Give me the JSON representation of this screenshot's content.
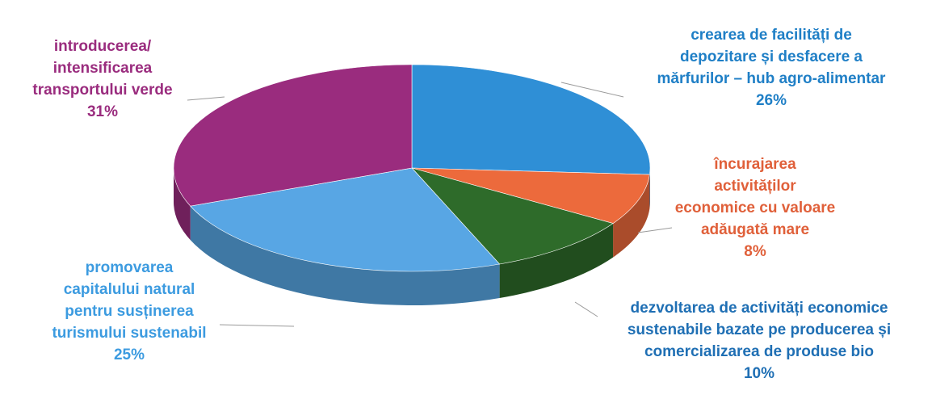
{
  "chart_data": {
    "type": "pie",
    "title": "",
    "slices": [
      {
        "lines": [
          "crearea de facilități de",
          "depozitare și desfacere a",
          "mărfurilor – hub agro-alimentar"
        ],
        "value": 26,
        "percent_label": "26%",
        "color": "#2f8fd6",
        "label_color": "#1f7fc6"
      },
      {
        "lines": [
          "încurajarea",
          "activităților",
          "economice cu valoare",
          "adăugată mare"
        ],
        "value": 8,
        "percent_label": "8%",
        "color": "#ec6a3c",
        "label_color": "#e0603a"
      },
      {
        "lines": [
          "dezvoltarea de activități economice",
          "sustenabile bazate pe producerea și",
          "comercializarea de produse bio"
        ],
        "value": 10,
        "percent_label": "10%",
        "color": "#2e6b2a",
        "label_color": "#1f6fb4"
      },
      {
        "lines": [
          "promovarea",
          "capitalului natural",
          "pentru susținerea",
          "turismului sustenabil"
        ],
        "value": 25,
        "percent_label": "25%",
        "color": "#58a6e4",
        "label_color": "#3c9be0"
      },
      {
        "lines": [
          "introducerea/",
          "intensificarea",
          "transportului verde"
        ],
        "value": 31,
        "percent_label": "31%",
        "color": "#9a2c7e",
        "label_color": "#9a2c7e"
      }
    ]
  }
}
